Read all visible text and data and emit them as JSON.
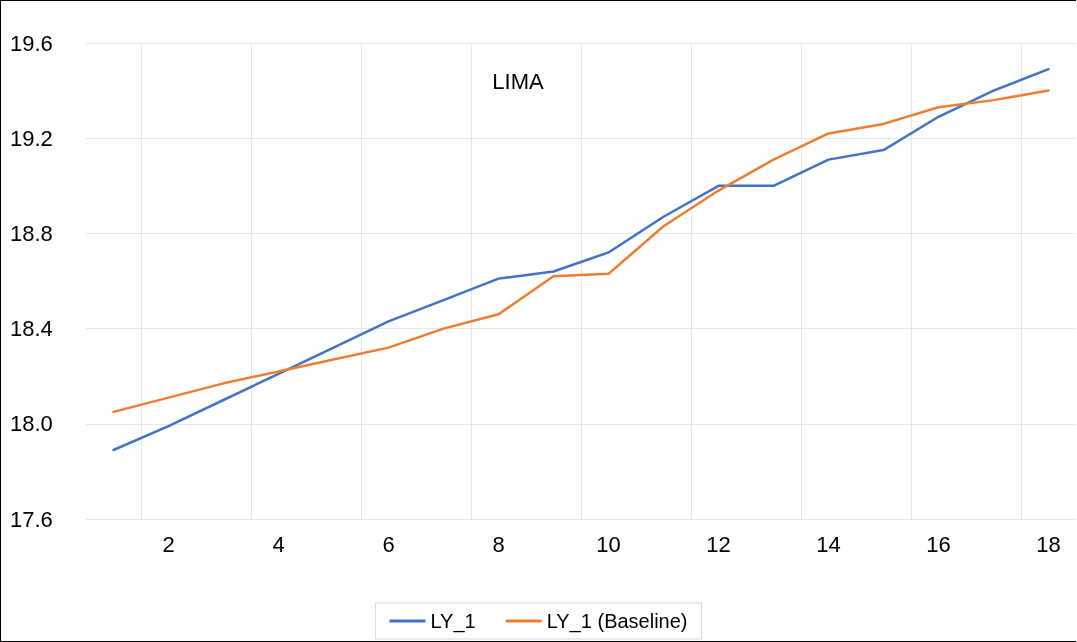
{
  "chart_data": {
    "type": "line",
    "title": "LIMA",
    "categories": [
      null,
      "2",
      null,
      "4",
      null,
      "6",
      null,
      "8",
      null,
      "10",
      null,
      "12",
      null,
      "14",
      null,
      "16",
      null,
      "18"
    ],
    "series": [
      {
        "name": "LY_1",
        "color": "#4472c4",
        "values": [
          17.89,
          17.99,
          18.1,
          18.21,
          18.32,
          18.43,
          18.52,
          18.61,
          18.64,
          18.72,
          18.87,
          19.0,
          19.0,
          19.11,
          19.15,
          19.29,
          19.4,
          19.49
        ]
      },
      {
        "name": "LY_1 (Baseline)",
        "color": "#ed7d31",
        "values": [
          18.05,
          18.11,
          18.17,
          18.22,
          18.27,
          18.32,
          18.4,
          18.46,
          18.62,
          18.63,
          18.83,
          18.98,
          19.11,
          19.22,
          19.26,
          19.33,
          19.36,
          19.4
        ]
      }
    ],
    "ylim": [
      17.6,
      19.6
    ],
    "yticks": [
      {
        "value": 17.6,
        "label": "17.6"
      },
      {
        "value": 18.0,
        "label": "18.0"
      },
      {
        "value": 18.4,
        "label": "18.4"
      },
      {
        "value": 18.8,
        "label": "18.8"
      },
      {
        "value": 19.2,
        "label": "19.2"
      },
      {
        "value": 19.6,
        "label": "19.6"
      }
    ],
    "grid": true,
    "legend": "bottom",
    "marker": "none",
    "line_style": "solid"
  }
}
